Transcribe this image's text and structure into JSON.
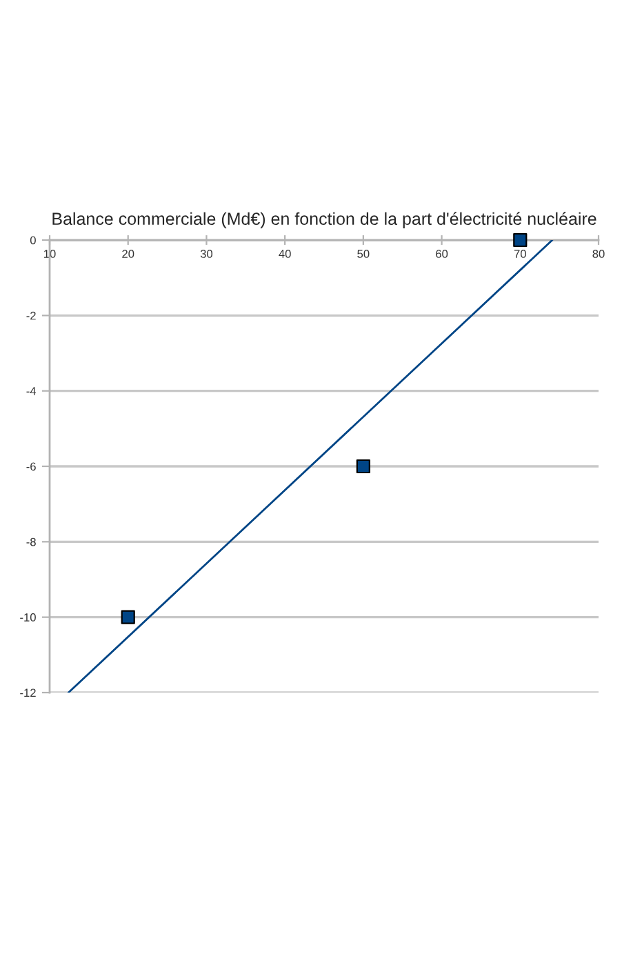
{
  "chart_data": {
    "type": "scatter",
    "title": "Balance commerciale (Md€) en fonction de la part d'électricité nucléaire",
    "series": [
      {
        "color": "#004586",
        "x": [
          20,
          50,
          70
        ],
        "values": [
          -10,
          -6,
          0
        ],
        "marker": "square"
      },
      {
        "type": "line",
        "color": "#004586",
        "x": [
          12.4,
          74.1
        ],
        "values": [
          -12,
          0
        ],
        "marker": "none",
        "line_style": "solid"
      }
    ],
    "xlim": [
      10,
      80
    ],
    "xticks": [
      10,
      20,
      30,
      40,
      50,
      60,
      70,
      80
    ],
    "ylim": [
      -12,
      0
    ],
    "yticks": [
      -12,
      -10,
      -8,
      -6,
      -4,
      -2,
      0
    ],
    "grid": "y"
  }
}
